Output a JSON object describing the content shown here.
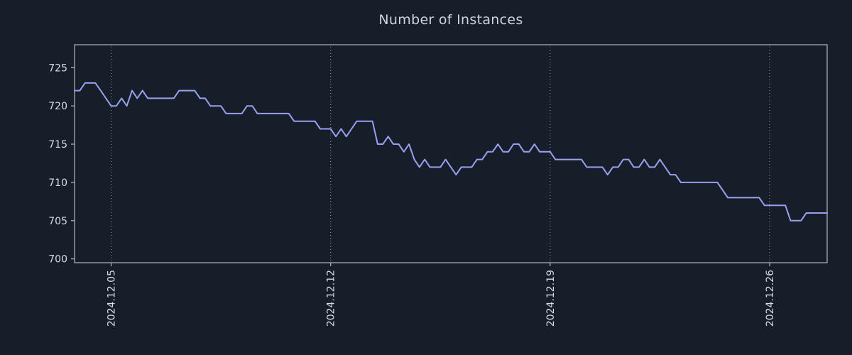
{
  "page": {
    "background_color": "#151e29",
    "text_color": "#d9dde2",
    "title_color": "#cdd3da"
  },
  "chart_data": {
    "type": "line",
    "title": "Number of Instances",
    "xlabel": "",
    "ylabel": "",
    "grid": "vertical-dotted",
    "legend": "none",
    "axis_color": "#b4b8bd",
    "grid_color": "#ffffff",
    "text_color": "#d9dde2",
    "ylim": [
      699.5,
      728
    ],
    "xlim": [
      3.8333,
      27.8333
    ],
    "y_ticks": [
      700,
      705,
      710,
      715,
      720,
      725
    ],
    "x_ticks": [
      {
        "day": 5,
        "label": "2024.12.05"
      },
      {
        "day": 12,
        "label": "2024.12.12"
      },
      {
        "day": 19,
        "label": "2024.12.19"
      },
      {
        "day": 26,
        "label": "2024.12.26"
      }
    ],
    "x_start_day": 3.8333,
    "x_step_days": 0.166667,
    "series": [
      {
        "name": "instances",
        "color": "#9b9ff0",
        "values": [
          722,
          722,
          723,
          723,
          723,
          722,
          721,
          720,
          720,
          721,
          720,
          722,
          721,
          722,
          721,
          721,
          721,
          721,
          721,
          721,
          722,
          722,
          722,
          722,
          721,
          721,
          720,
          720,
          720,
          719,
          719,
          719,
          719,
          720,
          720,
          719,
          719,
          719,
          719,
          719,
          719,
          719,
          718,
          718,
          718,
          718,
          718,
          717,
          717,
          717,
          716,
          717,
          716,
          717,
          718,
          718,
          718,
          718,
          715,
          715,
          716,
          715,
          715,
          714,
          715,
          713,
          712,
          713,
          712,
          712,
          712,
          713,
          712,
          711,
          712,
          712,
          712,
          713,
          713,
          714,
          714,
          715,
          714,
          714,
          715,
          715,
          714,
          714,
          715,
          714,
          714,
          714,
          713,
          713,
          713,
          713,
          713,
          713,
          712,
          712,
          712,
          712,
          711,
          712,
          712,
          713,
          713,
          712,
          712,
          713,
          712,
          712,
          713,
          712,
          711,
          711,
          710,
          710,
          710,
          710,
          710,
          710,
          710,
          710,
          709,
          708,
          708,
          708,
          708,
          708,
          708,
          708,
          707,
          707,
          707,
          707,
          707,
          705,
          705,
          705,
          706,
          706,
          706,
          706,
          706
        ]
      }
    ]
  }
}
